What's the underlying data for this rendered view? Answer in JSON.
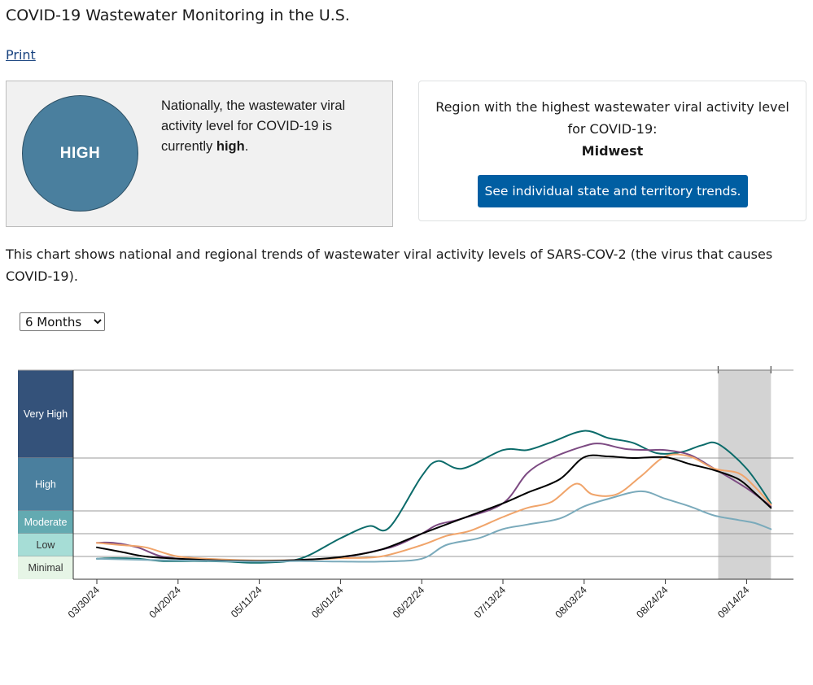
{
  "page": {
    "title": "COVID-19 Wastewater Monitoring in the U.S.",
    "print_label": "Print"
  },
  "national": {
    "level_badge": "HIGH",
    "text_prefix": "Nationally, the wastewater viral activity level for COVID-19 is currently ",
    "text_level": "high",
    "text_suffix": ".",
    "badge_color": "#4a7f9e"
  },
  "region": {
    "text": "Region with the highest wastewater viral activity level for COVID-19:",
    "name": "Midwest",
    "button_label": "See individual state and territory trends."
  },
  "chart_description": "This chart shows national and regional trends of wastewater viral activity levels of SARS-COV-2 (the virus that causes COVID-19).",
  "time_range": {
    "selected": "6 Months",
    "options": [
      "6 Months"
    ]
  },
  "chart_data": {
    "type": "line",
    "title": "",
    "xlabel": "",
    "ylabel": "",
    "levels": [
      {
        "name": "Very High",
        "from": 8,
        "to": 30,
        "color": "#34527a"
      },
      {
        "name": "High",
        "from": 4.5,
        "to": 8,
        "color": "#4a7f9e"
      },
      {
        "name": "Moderate",
        "from": 3,
        "to": 4.5,
        "color": "#63aab1"
      },
      {
        "name": "Low",
        "from": 2,
        "to": 3,
        "color": "#a6ddd6"
      },
      {
        "name": "Minimal",
        "from": 0,
        "to": 2,
        "color": "#e6f5e6"
      }
    ],
    "x_ticks": [
      "03/30/24",
      "04/20/24",
      "05/11/24",
      "06/01/24",
      "06/22/24",
      "07/13/24",
      "08/03/24",
      "08/24/24",
      "09/14/24"
    ],
    "x_start_label": "03/30/24",
    "x_start_value": -0.1,
    "x_end_value": 8.3,
    "provisional_from": 7.65,
    "provisional_color": "#d3d3d3",
    "series": [
      {
        "color": "#0b6b6a",
        "x": [
          0,
          0.2,
          0.5,
          0.8,
          1.2,
          1.6,
          2.0,
          2.5,
          3.0,
          3.35,
          3.6,
          4.0,
          4.2,
          4.5,
          5.0,
          5.3,
          5.6,
          6.0,
          6.3,
          6.6,
          6.9,
          7.2,
          7.45,
          7.65,
          8.0,
          8.3
        ],
        "y": [
          1.8,
          1.85,
          1.8,
          1.6,
          1.6,
          1.55,
          1.45,
          1.8,
          2.8,
          3.5,
          3.4,
          6.8,
          7.8,
          7.3,
          10.0,
          10.0,
          12.0,
          14.8,
          13.0,
          11.8,
          9.2,
          9.5,
          11.2,
          11.5,
          7.3,
          5.0
        ]
      },
      {
        "color": "#7c4a82",
        "x": [
          0,
          0.2,
          0.5,
          0.8,
          1.2,
          1.6,
          2.0,
          2.5,
          3.0,
          3.5,
          3.7,
          4.0,
          4.2,
          4.5,
          5.0,
          5.3,
          5.6,
          6.0,
          6.2,
          6.5,
          6.8,
          7.0,
          7.3,
          7.6,
          8.0,
          8.3
        ],
        "y": [
          2.6,
          2.6,
          2.4,
          2.0,
          1.7,
          1.65,
          1.6,
          1.7,
          1.9,
          2.3,
          2.5,
          3.0,
          3.6,
          4.0,
          5.0,
          7.0,
          8.0,
          11.0,
          11.6,
          10.3,
          10.0,
          10.0,
          8.8,
          7.3,
          6.0,
          4.8
        ]
      },
      {
        "color": "#f0a46a",
        "x": [
          0,
          0.3,
          0.6,
          1.0,
          1.5,
          2.0,
          2.5,
          3.0,
          3.5,
          4.0,
          4.3,
          4.6,
          5.0,
          5.3,
          5.6,
          5.9,
          6.1,
          6.4,
          6.7,
          7.0,
          7.3,
          7.6,
          7.9,
          8.1,
          8.3
        ],
        "y": [
          2.6,
          2.5,
          2.4,
          2.0,
          1.75,
          1.65,
          1.7,
          1.85,
          2.0,
          2.5,
          2.9,
          3.2,
          4.1,
          4.7,
          5.1,
          6.3,
          5.6,
          5.6,
          6.8,
          8.4,
          8.4,
          7.3,
          7.0,
          6.1,
          4.9
        ]
      },
      {
        "color": "#000000",
        "x": [
          0,
          0.3,
          0.6,
          1.0,
          1.5,
          2.0,
          2.5,
          3.0,
          3.5,
          4.0,
          4.5,
          5.0,
          5.3,
          5.7,
          6.0,
          6.3,
          6.6,
          7.0,
          7.3,
          7.6,
          7.9,
          8.1,
          8.3
        ],
        "y": [
          2.4,
          2.2,
          2.0,
          1.8,
          1.65,
          1.6,
          1.7,
          1.95,
          2.3,
          3.0,
          4.0,
          5.0,
          5.7,
          6.6,
          8.2,
          8.4,
          8.0,
          8.2,
          7.6,
          7.2,
          6.6,
          5.7,
          4.7
        ]
      },
      {
        "color": "#7aaabb",
        "x": [
          0,
          0.3,
          0.6,
          1.0,
          1.5,
          2.0,
          2.5,
          3.0,
          3.5,
          4.0,
          4.3,
          4.7,
          5.0,
          5.3,
          5.7,
          6.0,
          6.3,
          6.7,
          7.0,
          7.3,
          7.6,
          7.9,
          8.1,
          8.3
        ],
        "y": [
          1.8,
          1.75,
          1.7,
          1.65,
          1.6,
          1.55,
          1.6,
          1.55,
          1.55,
          1.8,
          2.5,
          2.8,
          3.3,
          3.6,
          4.0,
          4.8,
          5.3,
          5.8,
          5.3,
          4.8,
          4.2,
          3.9,
          3.7,
          3.3
        ]
      }
    ]
  }
}
